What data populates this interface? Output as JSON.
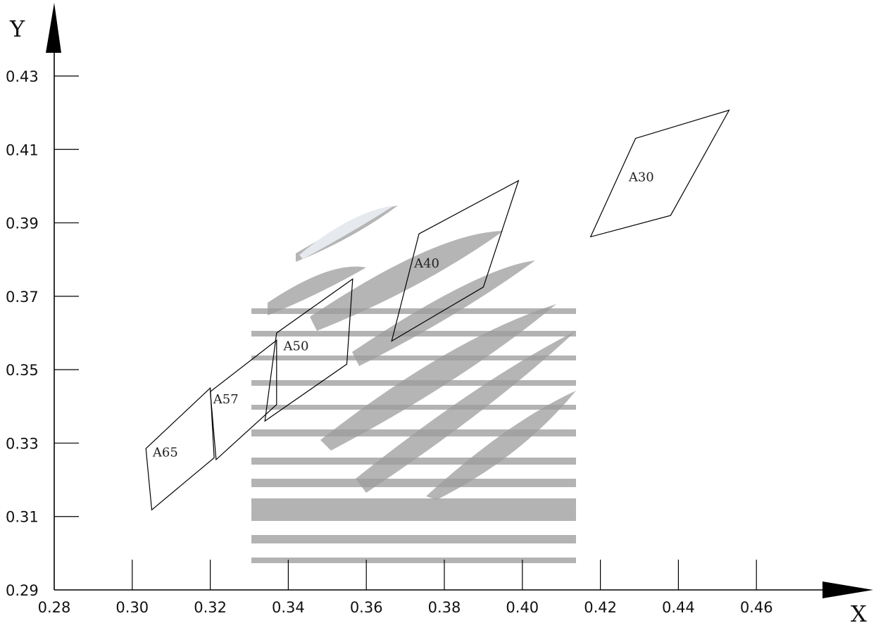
{
  "chart_data": {
    "type": "scatter",
    "title": "",
    "xlabel": "X",
    "ylabel": "Y",
    "xlim": [
      0.28,
      0.48
    ],
    "ylim": [
      0.29,
      0.43
    ],
    "x_ticks": [
      "0.28",
      "0.30",
      "0.32",
      "0.34",
      "0.36",
      "0.38",
      "0.40",
      "0.42",
      "0.44",
      "0.46"
    ],
    "y_ticks": [
      "0.29",
      "0.31",
      "0.33",
      "0.35",
      "0.37",
      "0.39",
      "0.41",
      "0.43"
    ],
    "grid": false,
    "regions": [
      {
        "name": "A30",
        "label_at": [
          0.4305,
          0.4025
        ],
        "vertices": [
          [
            0.4175,
            0.3862
          ],
          [
            0.429,
            0.413
          ],
          [
            0.453,
            0.4207
          ],
          [
            0.438,
            0.392
          ]
        ]
      },
      {
        "name": "A40",
        "label_at": [
          0.3755,
          0.379
        ],
        "vertices": [
          [
            0.3665,
            0.3578
          ],
          [
            0.3735,
            0.387
          ],
          [
            0.399,
            0.4015
          ],
          [
            0.39,
            0.3725
          ]
        ]
      },
      {
        "name": "A50",
        "label_at": [
          0.342,
          0.3565
        ],
        "vertices": [
          [
            0.334,
            0.336
          ],
          [
            0.337,
            0.36
          ],
          [
            0.3565,
            0.3747
          ],
          [
            0.355,
            0.3515
          ]
        ]
      },
      {
        "name": "A57",
        "label_at": [
          0.324,
          0.342
        ],
        "vertices": [
          [
            0.3215,
            0.3255
          ],
          [
            0.32,
            0.344
          ],
          [
            0.337,
            0.358
          ],
          [
            0.337,
            0.3405
          ]
        ]
      },
      {
        "name": "A65",
        "label_at": [
          0.3085,
          0.3275
        ],
        "vertices": [
          [
            0.305,
            0.3118
          ],
          [
            0.3035,
            0.3285
          ],
          [
            0.32,
            0.345
          ],
          [
            0.321,
            0.326
          ]
        ]
      }
    ]
  }
}
